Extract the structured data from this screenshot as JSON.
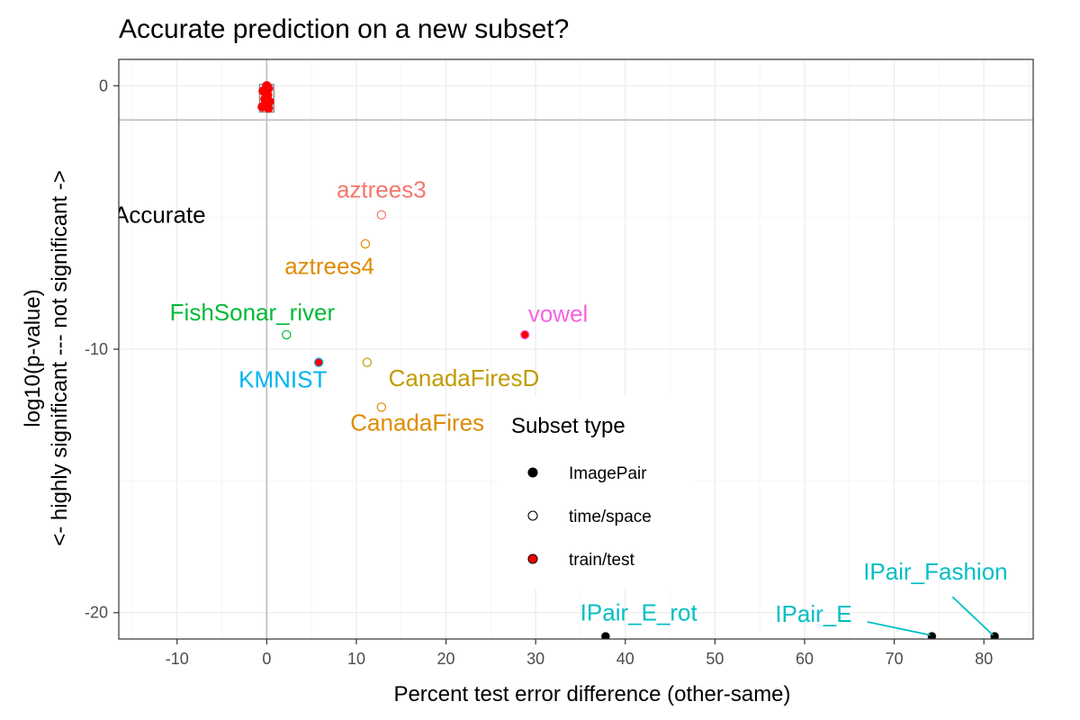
{
  "chart_data": {
    "type": "scatter",
    "title": "Accurate prediction on a new subset?",
    "xlabel": "Percent test error difference (other-same)",
    "ylabel_line1": "log10(p-value)",
    "ylabel_line2": "<- highly significant --- not significant ->",
    "xlim": [
      -16.5,
      85.5
    ],
    "ylim": [
      -21,
      1
    ],
    "xticks": [
      -10,
      0,
      10,
      20,
      30,
      40,
      50,
      60,
      70,
      80
    ],
    "yticks": [
      0,
      -10,
      -20
    ],
    "grid": true,
    "reference_lines": {
      "x": 0,
      "y": -1.301
    },
    "annotation": "Accurate",
    "legend": {
      "title": "Subset type",
      "position": "right-inside",
      "entries": [
        {
          "label": "ImagePair",
          "fill": "#000000"
        },
        {
          "label": "time/space",
          "fill": "#ffffff"
        },
        {
          "label": "train/test",
          "fill": "#ff0000"
        }
      ]
    },
    "points": [
      {
        "x": 12.8,
        "y": -4.9,
        "type": "time/space",
        "stroke": "#F8766D"
      },
      {
        "x": 11.0,
        "y": -6.0,
        "type": "time/space",
        "stroke": "#DE8C00"
      },
      {
        "x": 2.2,
        "y": -9.45,
        "type": "time/space",
        "stroke": "#00BA38"
      },
      {
        "x": 28.8,
        "y": -9.45,
        "type": "train/test",
        "stroke": "#F564E3"
      },
      {
        "x": 5.8,
        "y": -10.5,
        "type": "train/test",
        "stroke": "#00B4EF"
      },
      {
        "x": 11.2,
        "y": -10.5,
        "type": "time/space",
        "stroke": "#C09B00"
      },
      {
        "x": 12.8,
        "y": -12.2,
        "type": "time/space",
        "stroke": "#DE8C00"
      },
      {
        "x": 37.8,
        "y": -20.9,
        "type": "ImagePair",
        "stroke": "#00BFC4"
      },
      {
        "x": 74.2,
        "y": -20.9,
        "type": "ImagePair",
        "stroke": "#00BFC4"
      },
      {
        "x": 81.2,
        "y": -20.9,
        "type": "ImagePair",
        "stroke": "#00BFC4"
      },
      {
        "x": 0.0,
        "y": 0.0,
        "type": "train/test",
        "stroke": "#ff0000"
      },
      {
        "x": 0.2,
        "y": -0.1,
        "type": "train/test",
        "stroke": "#ff0000"
      },
      {
        "x": -0.4,
        "y": -0.2,
        "type": "train/test",
        "stroke": "#ff0000"
      },
      {
        "x": 0.1,
        "y": -0.35,
        "type": "train/test",
        "stroke": "#ff0000"
      },
      {
        "x": -0.2,
        "y": -0.5,
        "type": "train/test",
        "stroke": "#ff0000"
      },
      {
        "x": 0.3,
        "y": -0.6,
        "type": "train/test",
        "stroke": "#ff0000"
      },
      {
        "x": -0.5,
        "y": -0.8,
        "type": "train/test",
        "stroke": "#ff0000"
      },
      {
        "x": 0.2,
        "y": -0.85,
        "type": "train/test",
        "stroke": "#ff0000"
      }
    ],
    "labels": [
      {
        "text": "aztrees3",
        "x": 12.8,
        "y": -4.25,
        "color": "#F8766D",
        "anchor": "middle"
      },
      {
        "text": "aztrees4",
        "x": 7.0,
        "y": -7.15,
        "color": "#DE8C00",
        "anchor": "middle"
      },
      {
        "text": "FishSonar_river",
        "x": -1.6,
        "y": -8.9,
        "color": "#00BA38",
        "anchor": "middle"
      },
      {
        "text": "vowel",
        "x": 32.5,
        "y": -8.95,
        "color": "#F564E3",
        "anchor": "middle"
      },
      {
        "text": "KMNIST",
        "x": 1.8,
        "y": -11.45,
        "color": "#00B4EF",
        "anchor": "middle"
      },
      {
        "text": "CanadaFiresD",
        "x": 22.0,
        "y": -11.4,
        "color": "#C09B00",
        "anchor": "middle"
      },
      {
        "text": "CanadaFires",
        "x": 16.8,
        "y": -13.1,
        "color": "#DE8C00",
        "anchor": "middle"
      },
      {
        "text": "IPair_E_rot",
        "x": 41.5,
        "y": -20.3,
        "color": "#00BFC4",
        "anchor": "middle"
      },
      {
        "text": "IPair_E",
        "x": 61.0,
        "y": -20.35,
        "color": "#00BFC4",
        "anchor": "middle"
      },
      {
        "text": "IPair_Fashion",
        "x": 74.6,
        "y": -18.75,
        "color": "#00BFC4",
        "anchor": "middle"
      }
    ],
    "leaders": [
      {
        "from": [
          67.0,
          -20.35
        ],
        "to": [
          74.0,
          -20.85
        ],
        "color": "#00BFC4"
      },
      {
        "from": [
          76.5,
          -19.4
        ],
        "to": [
          81.0,
          -20.85
        ],
        "color": "#00BFC4"
      }
    ],
    "highlight_box": {
      "x": [
        -0.8,
        0.8
      ],
      "y": [
        0.05,
        -1.0
      ]
    }
  }
}
